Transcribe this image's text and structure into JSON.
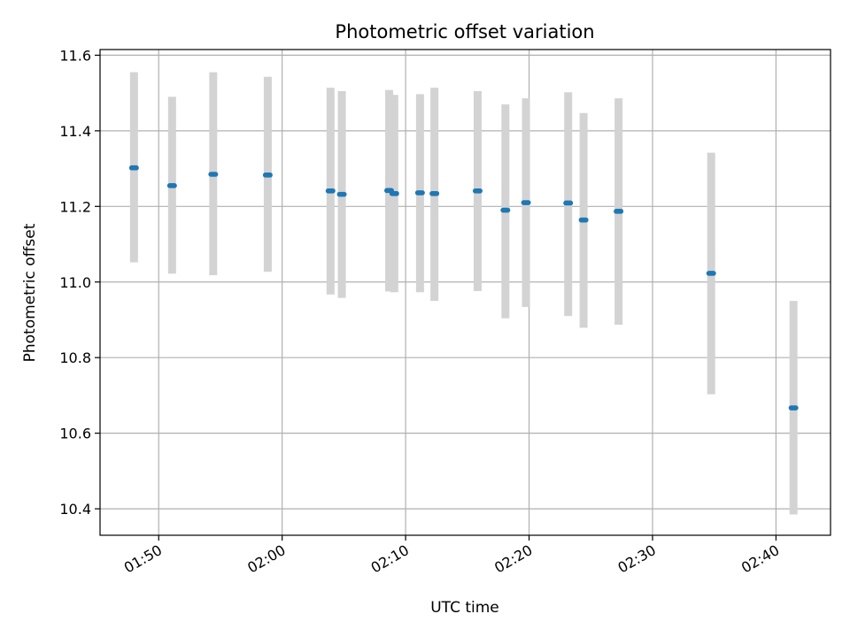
{
  "chart_data": {
    "type": "scatter",
    "title": "Photometric offset variation",
    "xlabel": "UTC time",
    "ylabel": "Photometric offset",
    "x_axis_type": "time",
    "xlim": [
      "01:45:15",
      "02:44:25"
    ],
    "ylim": [
      10.33,
      11.615
    ],
    "x_ticks": [
      "01:50",
      "02:00",
      "02:10",
      "02:20",
      "02:30",
      "02:40"
    ],
    "y_ticks": [
      "10.4",
      "10.6",
      "10.8",
      "11.0",
      "11.2",
      "11.4",
      "11.6"
    ],
    "y_tick_values": [
      10.4,
      10.6,
      10.8,
      11.0,
      11.2,
      11.4,
      11.6
    ],
    "grid": true,
    "point_color": "#1f77b4",
    "errorbar_color": "#d3d3d3",
    "series": [
      {
        "points": [
          {
            "x": "01:48:00",
            "y": 11.302,
            "ylow": 11.052,
            "yhigh": 11.555
          },
          {
            "x": "01:51:05",
            "y": 11.255,
            "ylow": 11.022,
            "yhigh": 11.49
          },
          {
            "x": "01:54:25",
            "y": 11.285,
            "ylow": 11.018,
            "yhigh": 11.555
          },
          {
            "x": "01:58:50",
            "y": 11.283,
            "ylow": 11.027,
            "yhigh": 11.543
          },
          {
            "x": "02:03:55",
            "y": 11.241,
            "ylow": 10.967,
            "yhigh": 11.514
          },
          {
            "x": "02:04:50",
            "y": 11.232,
            "ylow": 10.958,
            "yhigh": 11.505
          },
          {
            "x": "02:08:40",
            "y": 11.242,
            "ylow": 10.975,
            "yhigh": 11.508
          },
          {
            "x": "02:09:05",
            "y": 11.234,
            "ylow": 10.973,
            "yhigh": 11.495
          },
          {
            "x": "02:11:10",
            "y": 11.236,
            "ylow": 10.973,
            "yhigh": 11.497
          },
          {
            "x": "02:12:20",
            "y": 11.234,
            "ylow": 10.95,
            "yhigh": 11.514
          },
          {
            "x": "02:15:50",
            "y": 11.241,
            "ylow": 10.976,
            "yhigh": 11.505
          },
          {
            "x": "02:18:05",
            "y": 11.19,
            "ylow": 10.904,
            "yhigh": 11.47
          },
          {
            "x": "02:19:45",
            "y": 11.21,
            "ylow": 10.934,
            "yhigh": 11.486
          },
          {
            "x": "02:23:10",
            "y": 11.209,
            "ylow": 10.91,
            "yhigh": 11.502
          },
          {
            "x": "02:24:25",
            "y": 11.164,
            "ylow": 10.879,
            "yhigh": 11.447
          },
          {
            "x": "02:27:15",
            "y": 11.187,
            "ylow": 10.887,
            "yhigh": 11.486
          },
          {
            "x": "02:34:45",
            "y": 11.023,
            "ylow": 10.703,
            "yhigh": 11.342
          },
          {
            "x": "02:41:25",
            "y": 10.667,
            "ylow": 10.385,
            "yhigh": 10.95
          }
        ]
      }
    ]
  }
}
